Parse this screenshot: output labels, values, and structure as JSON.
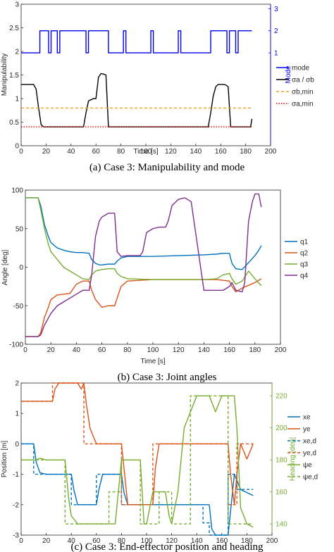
{
  "chart_data": [
    {
      "id": "a",
      "type": "line",
      "caption": "(a) Case 3: Manipulability and mode",
      "xlabel": "Time [s]",
      "ylabel": "Manipulability",
      "y2label": "Mode",
      "xlim": [
        0,
        200
      ],
      "ylim": [
        0,
        3
      ],
      "y2lim": [
        -3.2,
        3.2
      ],
      "x_ticks": [
        "0",
        "20",
        "40",
        "60",
        "80",
        "100",
        "120",
        "140",
        "160",
        "180",
        "200"
      ],
      "y_ticks": [
        "0",
        "0.5",
        "1",
        "1.5",
        "2",
        "2.5",
        "3"
      ],
      "y2_ticks": [
        "1",
        "2",
        "3"
      ],
      "legend_position": "right",
      "legend": [
        {
          "label": "mode",
          "color": "#0000ee",
          "dash": "solid"
        },
        {
          "label": "σa / σb",
          "color": "#000000",
          "dash": "solid"
        },
        {
          "label": "σb,min",
          "color": "#f0a020",
          "dash": "dashed"
        },
        {
          "label": "σa,min",
          "color": "#e00000",
          "dash": "dotted"
        }
      ],
      "series": [
        {
          "name": "mode",
          "axis": "right",
          "color": "#0000ee",
          "step": true,
          "x": [
            0,
            15,
            15,
            22,
            22,
            24,
            24,
            29,
            29,
            31,
            31,
            52,
            52,
            54,
            54,
            70,
            70,
            82,
            82,
            84,
            84,
            104,
            104,
            106,
            106,
            126,
            126,
            128,
            128,
            152,
            152,
            165,
            165,
            167,
            167,
            172,
            172,
            174,
            174,
            185
          ],
          "y": [
            1,
            1,
            2,
            2,
            1,
            1,
            2,
            2,
            1,
            1,
            2,
            2,
            1,
            1,
            2,
            2,
            1,
            1,
            2,
            2,
            1,
            1,
            2,
            2,
            1,
            1,
            2,
            2,
            1,
            1,
            2,
            2,
            1,
            1,
            2,
            2,
            1,
            1,
            2,
            2
          ]
        },
        {
          "name": "σa / σb",
          "axis": "left",
          "color": "#000000",
          "x": [
            0,
            10,
            12,
            14,
            16,
            18,
            50,
            52,
            54,
            58,
            60,
            62,
            64,
            66,
            68,
            70,
            150,
            152,
            154,
            156,
            158,
            160,
            162,
            164,
            166,
            168,
            184,
            185
          ],
          "y": [
            1.3,
            1.3,
            1.2,
            0.8,
            0.45,
            0.4,
            0.4,
            0.7,
            0.95,
            1.0,
            1.0,
            1.45,
            1.53,
            1.52,
            1.5,
            0.4,
            0.4,
            0.7,
            1.05,
            1.25,
            1.3,
            1.3,
            1.3,
            1.29,
            1.25,
            0.4,
            0.4,
            0.57
          ]
        },
        {
          "name": "σb,min",
          "axis": "left",
          "color": "#f0a020",
          "dash": "4,3",
          "x": [
            0,
            185
          ],
          "y": [
            0.8,
            0.8
          ]
        },
        {
          "name": "σa,min",
          "axis": "left",
          "color": "#e00000",
          "dash": "1.5,2",
          "x": [
            0,
            185
          ],
          "y": [
            0.4,
            0.4
          ]
        }
      ]
    },
    {
      "id": "b",
      "type": "line",
      "caption": "(b) Case 3: Joint angles",
      "xlabel": "Time [s]",
      "ylabel": "Angle [deg]",
      "xlim": [
        0,
        200
      ],
      "ylim": [
        -100,
        100
      ],
      "x_ticks": [
        "0",
        "20",
        "40",
        "60",
        "80",
        "100",
        "120",
        "140",
        "160",
        "180",
        "200"
      ],
      "y_ticks": [
        "-100",
        "-50",
        "0",
        "50",
        "100"
      ],
      "legend_position": "right",
      "legend": [
        {
          "label": "q1",
          "color": "#0072bd",
          "dash": "solid"
        },
        {
          "label": "q2",
          "color": "#d95319",
          "dash": "solid"
        },
        {
          "label": "q3",
          "color": "#77ac30",
          "dash": "solid"
        },
        {
          "label": "q4",
          "color": "#7e2f8e",
          "dash": "solid"
        }
      ],
      "series": [
        {
          "name": "q1",
          "color": "#0072bd",
          "x": [
            0,
            10,
            12,
            15,
            18,
            20,
            25,
            30,
            35,
            40,
            45,
            50,
            52,
            55,
            58,
            60,
            65,
            70,
            72,
            75,
            80,
            100,
            120,
            140,
            150,
            155,
            160,
            162,
            165,
            170,
            180,
            183,
            185
          ],
          "y": [
            90,
            90,
            80,
            55,
            40,
            32,
            25,
            22,
            20,
            19,
            19,
            18,
            10,
            5,
            3,
            3,
            4,
            4,
            8,
            12,
            14,
            14,
            15,
            16,
            17,
            18,
            18,
            5,
            -2,
            -3,
            15,
            22,
            28
          ]
        },
        {
          "name": "q2",
          "color": "#d95319",
          "x": [
            0,
            10,
            12,
            15,
            18,
            20,
            25,
            30,
            35,
            40,
            45,
            50,
            52,
            55,
            58,
            60,
            65,
            70,
            72,
            75,
            80,
            100,
            120,
            140,
            150,
            160,
            162,
            165,
            170,
            180,
            185
          ],
          "y": [
            -90,
            -90,
            -85,
            -65,
            -52,
            -42,
            -36,
            -35,
            -34,
            -22,
            -18,
            -18,
            -30,
            -42,
            -48,
            -52,
            -50,
            -50,
            -40,
            -25,
            -18,
            -16,
            -16,
            -16,
            -16,
            -18,
            -25,
            -32,
            -27,
            -20,
            -15
          ]
        },
        {
          "name": "q3",
          "color": "#77ac30",
          "x": [
            0,
            10,
            12,
            15,
            18,
            20,
            25,
            30,
            35,
            40,
            45,
            50,
            52,
            55,
            60,
            65,
            70,
            72,
            75,
            80,
            100,
            120,
            140,
            150,
            155,
            160,
            162,
            165,
            170,
            175,
            180,
            185
          ],
          "y": [
            90,
            90,
            75,
            50,
            30,
            20,
            10,
            0,
            -5,
            -10,
            -15,
            -16,
            -10,
            -5,
            -3,
            -2,
            -2,
            -8,
            -12,
            -15,
            -16,
            -16,
            -16,
            -15,
            -10,
            -8,
            -15,
            -22,
            -18,
            -5,
            -15,
            -24
          ]
        },
        {
          "name": "q4",
          "color": "#7e2f8e",
          "x": [
            0,
            10,
            12,
            15,
            20,
            25,
            30,
            35,
            40,
            45,
            50,
            52,
            55,
            58,
            60,
            65,
            70,
            72,
            75,
            80,
            90,
            92,
            95,
            100,
            105,
            110,
            112,
            115,
            120,
            125,
            130,
            140,
            150,
            155,
            160,
            162,
            165,
            170,
            172,
            175,
            178,
            180,
            183,
            185
          ],
          "y": [
            -90,
            -90,
            -88,
            -75,
            -60,
            -50,
            -45,
            -40,
            -35,
            -30,
            -30,
            -10,
            40,
            60,
            65,
            70,
            70,
            20,
            14,
            15,
            15,
            20,
            45,
            50,
            52,
            52,
            60,
            80,
            88,
            90,
            85,
            -30,
            -30,
            -30,
            -25,
            -20,
            -30,
            -32,
            -20,
            60,
            85,
            95,
            95,
            78
          ]
        }
      ]
    },
    {
      "id": "c",
      "type": "line",
      "caption": "(c) Case 3: End-effector position and heading",
      "xlabel": "",
      "ylabel": "Position [m]",
      "y2label": "Heading [deg]",
      "xlim": [
        0,
        200
      ],
      "ylim": [
        -3,
        2
      ],
      "y2lim": [
        133,
        228
      ],
      "x_ticks": [
        "0",
        "20",
        "40",
        "60",
        "80",
        "100",
        "120",
        "140",
        "160",
        "180",
        "200"
      ],
      "y_ticks": [
        "-3",
        "-2",
        "-1",
        "0",
        "1",
        "2"
      ],
      "y2_ticks": [
        "140",
        "160",
        "180",
        "200",
        "220"
      ],
      "legend_position": "right",
      "legend": [
        {
          "label": "xe",
          "color": "#0072bd",
          "dash": "solid"
        },
        {
          "label": "ye",
          "color": "#d95319",
          "dash": "solid"
        },
        {
          "label": "xe,d",
          "color": "#0072bd",
          "dash": "dashed"
        },
        {
          "label": "ye,d",
          "color": "#d95319",
          "dash": "dashed"
        },
        {
          "label": "ψe",
          "color": "#77ac30",
          "dash": "solid"
        },
        {
          "label": "ψe,d",
          "color": "#77ac30",
          "dash": "dashed"
        }
      ],
      "series": [
        {
          "name": "xe",
          "axis": "left",
          "color": "#0072bd",
          "x": [
            0,
            10,
            12,
            15,
            20,
            40,
            42,
            45,
            60,
            62,
            65,
            80,
            82,
            85,
            100,
            120,
            130,
            140,
            145,
            150,
            152,
            155,
            160,
            165,
            170,
            175,
            185
          ],
          "y": [
            0,
            0,
            -0.6,
            -0.95,
            -1,
            -1,
            -1.5,
            -2,
            -2,
            -1.5,
            -1,
            -1,
            -1.6,
            -2,
            -2,
            -2,
            -2,
            -2,
            -2,
            -2,
            -2.8,
            -3,
            -3,
            -3,
            -1,
            -1.5,
            -1.7
          ]
        },
        {
          "name": "xe,d",
          "axis": "left",
          "color": "#0072bd",
          "dash": "4,3",
          "x": [
            0,
            10,
            10,
            40,
            40,
            60,
            60,
            80,
            80,
            145,
            145,
            150,
            150,
            165,
            165,
            172,
            172,
            185
          ],
          "y": [
            0,
            0,
            -1,
            -1,
            -2,
            -2,
            -1,
            -1,
            -2,
            -2,
            -2.6,
            -2.6,
            -3,
            -3,
            -1,
            -1,
            -1.5,
            -1.5
          ]
        },
        {
          "name": "ye",
          "axis": "left",
          "color": "#d95319",
          "x": [
            0,
            25,
            27,
            30,
            45,
            48,
            50,
            52,
            55,
            60,
            80,
            82,
            85,
            105,
            107,
            110,
            120,
            150,
            165,
            167,
            170,
            172,
            175,
            180,
            185
          ],
          "y": [
            1.4,
            1.4,
            1.8,
            2,
            2,
            1.8,
            2,
            1.3,
            0.5,
            0,
            0,
            -0.8,
            -2,
            -2,
            -0.8,
            0,
            0,
            0,
            0,
            -1,
            -2,
            -1,
            0,
            -0.5,
            0
          ]
        },
        {
          "name": "ye,d",
          "axis": "left",
          "color": "#d95319",
          "dash": "4,3",
          "x": [
            0,
            25,
            25,
            50,
            50,
            80,
            80,
            105,
            105,
            165,
            165,
            172,
            172,
            185
          ],
          "y": [
            1.4,
            1.4,
            2,
            2,
            0,
            0,
            -2,
            -2,
            0,
            0,
            -2,
            -2,
            0,
            0
          ]
        },
        {
          "name": "ψe",
          "axis": "right",
          "color": "#77ac30",
          "x": [
            0,
            10,
            12,
            15,
            20,
            30,
            35,
            38,
            40,
            45,
            50,
            52,
            55,
            60,
            70,
            75,
            80,
            85,
            90,
            95,
            98,
            100,
            105,
            115,
            118,
            120,
            125,
            130,
            140,
            145,
            150,
            155,
            160,
            165,
            170,
            172,
            175,
            180,
            185
          ],
          "y": [
            180,
            180,
            180,
            181,
            180,
            180,
            180,
            155,
            145,
            140,
            140,
            140,
            140,
            140,
            140,
            140,
            180,
            180,
            180,
            180,
            140,
            140,
            160,
            160,
            145,
            140,
            160,
            200,
            220,
            220,
            220,
            210,
            220,
            220,
            220,
            200,
            150,
            140,
            138
          ]
        },
        {
          "name": "ψe,d",
          "axis": "right",
          "color": "#77ac30",
          "dash": "4,3",
          "x": [
            0,
            35,
            35,
            70,
            70,
            80,
            80,
            95,
            95,
            110,
            110,
            120,
            120,
            135,
            135,
            165,
            165,
            185
          ],
          "y": [
            180,
            180,
            140,
            140,
            160,
            160,
            180,
            180,
            140,
            140,
            160,
            160,
            140,
            140,
            220,
            220,
            140,
            140
          ]
        }
      ]
    }
  ]
}
